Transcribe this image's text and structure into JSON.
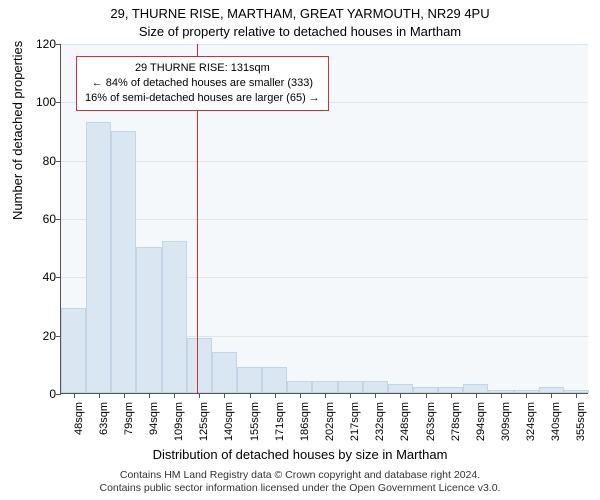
{
  "titles": {
    "address": "29, THURNE RISE, MARTHAM, GREAT YARMOUTH, NR29 4PU",
    "subtitle": "Size of property relative to detached houses in Martham"
  },
  "axes": {
    "ylabel": "Number of detached properties",
    "xlabel": "Distribution of detached houses by size in Martham",
    "ymax": 120,
    "ytick_step": 20,
    "yticks": [
      0,
      20,
      40,
      60,
      80,
      100,
      120
    ]
  },
  "chart": {
    "type": "histogram",
    "bar_fill": "#dae6f2",
    "bar_stroke": "#c2d4e6",
    "plot_bg": "#f4f8fb",
    "grid_color": "#dde6ec",
    "axis_color": "#555555",
    "refline_color": "#d23030",
    "refline_x_sqm": 131,
    "xtick_labels": [
      "48sqm",
      "63sqm",
      "79sqm",
      "94sqm",
      "109sqm",
      "125sqm",
      "140sqm",
      "155sqm",
      "171sqm",
      "186sqm",
      "202sqm",
      "217sqm",
      "232sqm",
      "248sqm",
      "263sqm",
      "278sqm",
      "294sqm",
      "309sqm",
      "324sqm",
      "340sqm",
      "355sqm"
    ],
    "bar_values": [
      29,
      93,
      90,
      50,
      52,
      19,
      14,
      9,
      9,
      4,
      4,
      4,
      4,
      3,
      2,
      2,
      3,
      1,
      1,
      2,
      1
    ]
  },
  "annotation": {
    "line1": "29 THURNE RISE: 131sqm",
    "line2": "← 84% of detached houses are smaller (333)",
    "line3": "16% of semi-detached houses are larger (65) →"
  },
  "footer": {
    "line1": "Contains HM Land Registry data © Crown copyright and database right 2024.",
    "line2": "Contains public sector information licensed under the Open Government Licence v3.0."
  },
  "style": {
    "title_fontsize": 13,
    "label_fontsize": 13,
    "tick_fontsize": 12,
    "xtick_fontsize": 11,
    "annot_fontsize": 11,
    "footer_fontsize": 10.5
  }
}
